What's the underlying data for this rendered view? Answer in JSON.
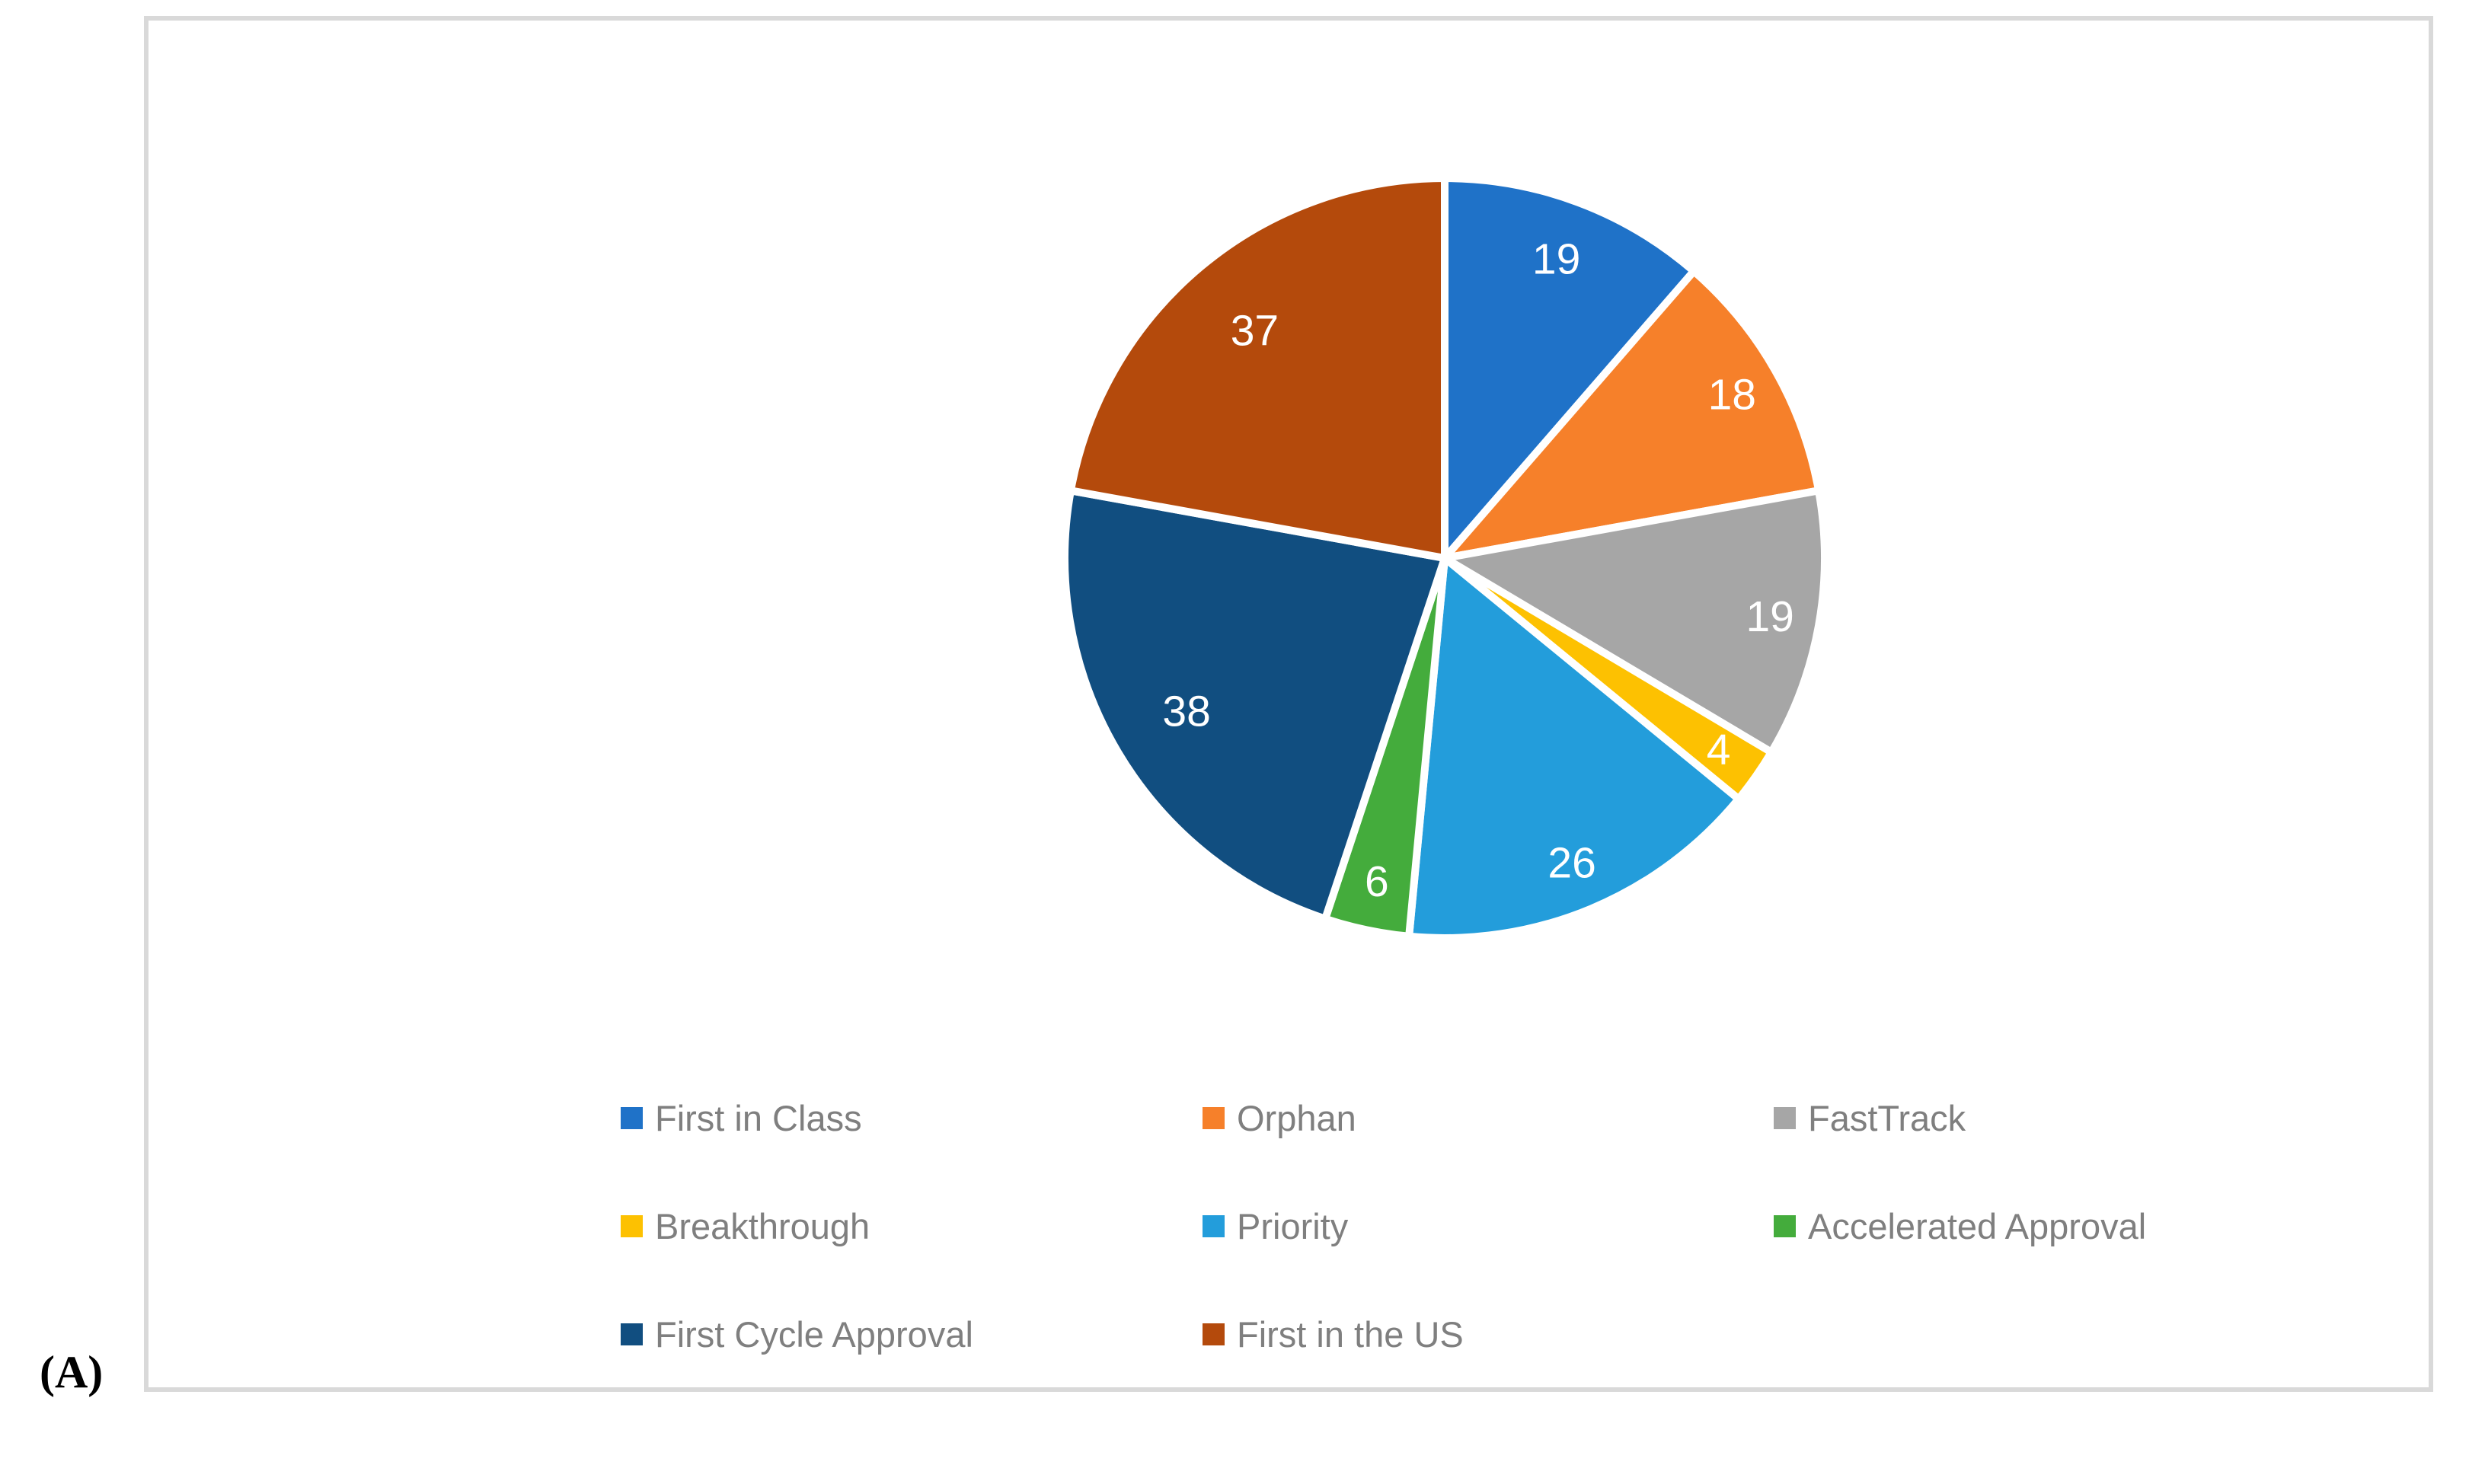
{
  "figure_label": "(A)",
  "panel": {
    "border_color": "#D9D9D9",
    "background": "#FFFFFF"
  },
  "chart_data": {
    "type": "pie",
    "title": "",
    "total": 167,
    "start_angle_deg": 0,
    "direction": "clockwise",
    "data_labels": "values",
    "data_label_color": "#FFFFFF",
    "legend_position": "bottom",
    "legend_text_color": "#7F7F7F",
    "slice_separator_color": "#FFFFFF",
    "slices": [
      {
        "label": "First in Class",
        "value": 19,
        "color": "#1F72C8",
        "label_radius": 0.84
      },
      {
        "label": "Orphan",
        "value": 18,
        "color": "#F6802A",
        "label_radius": 0.87
      },
      {
        "label": "FastTrack",
        "value": 19,
        "color": "#A6A6A6",
        "label_radius": 0.87
      },
      {
        "label": "Breakthrough",
        "value": 4,
        "color": "#FDC101",
        "label_radius": 0.88
      },
      {
        "label": "Priority",
        "value": 26,
        "color": "#239DDB",
        "label_radius": 0.87
      },
      {
        "label": "Accelerated Approval",
        "value": 6,
        "color": "#44AC3C",
        "label_radius": 0.87
      },
      {
        "label": "First Cycle Approval",
        "value": 38,
        "color": "#114E80",
        "label_radius": 0.79
      },
      {
        "label": "First in the US",
        "value": 37,
        "color": "#B44A0C",
        "label_radius": 0.78
      }
    ]
  }
}
